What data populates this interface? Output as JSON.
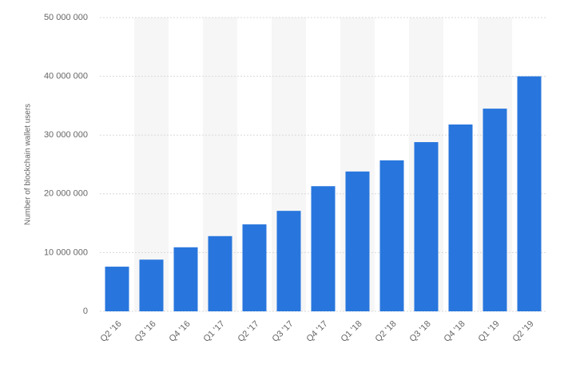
{
  "chart_data": {
    "type": "bar",
    "y_label": "Number of blockchain wallet users",
    "categories": [
      "Q2 '16",
      "Q3 '16",
      "Q4 '16",
      "Q1 '17",
      "Q2 '17",
      "Q3 '17",
      "Q4 '17",
      "Q1 '18",
      "Q2 '18",
      "Q3 '18",
      "Q4 '18",
      "Q1 '19",
      "Q2 '19"
    ],
    "values": [
      7600000,
      8800000,
      10900000,
      12800000,
      14800000,
      17100000,
      21300000,
      23800000,
      25700000,
      28800000,
      31800000,
      34500000,
      40000000
    ],
    "color": "#2876dd",
    "ylim": [
      0,
      50000000
    ],
    "yticks": [
      0,
      {
        "value": 10000000,
        "label": "10 000 000"
      },
      {
        "value": 20000000,
        "label": "20 000 000"
      },
      {
        "value": 30000000,
        "label": "30 000 000"
      },
      {
        "value": 40000000,
        "label": "40 000 000"
      },
      {
        "value": 50000000,
        "label": "50 000 000"
      }
    ],
    "grid": true
  }
}
